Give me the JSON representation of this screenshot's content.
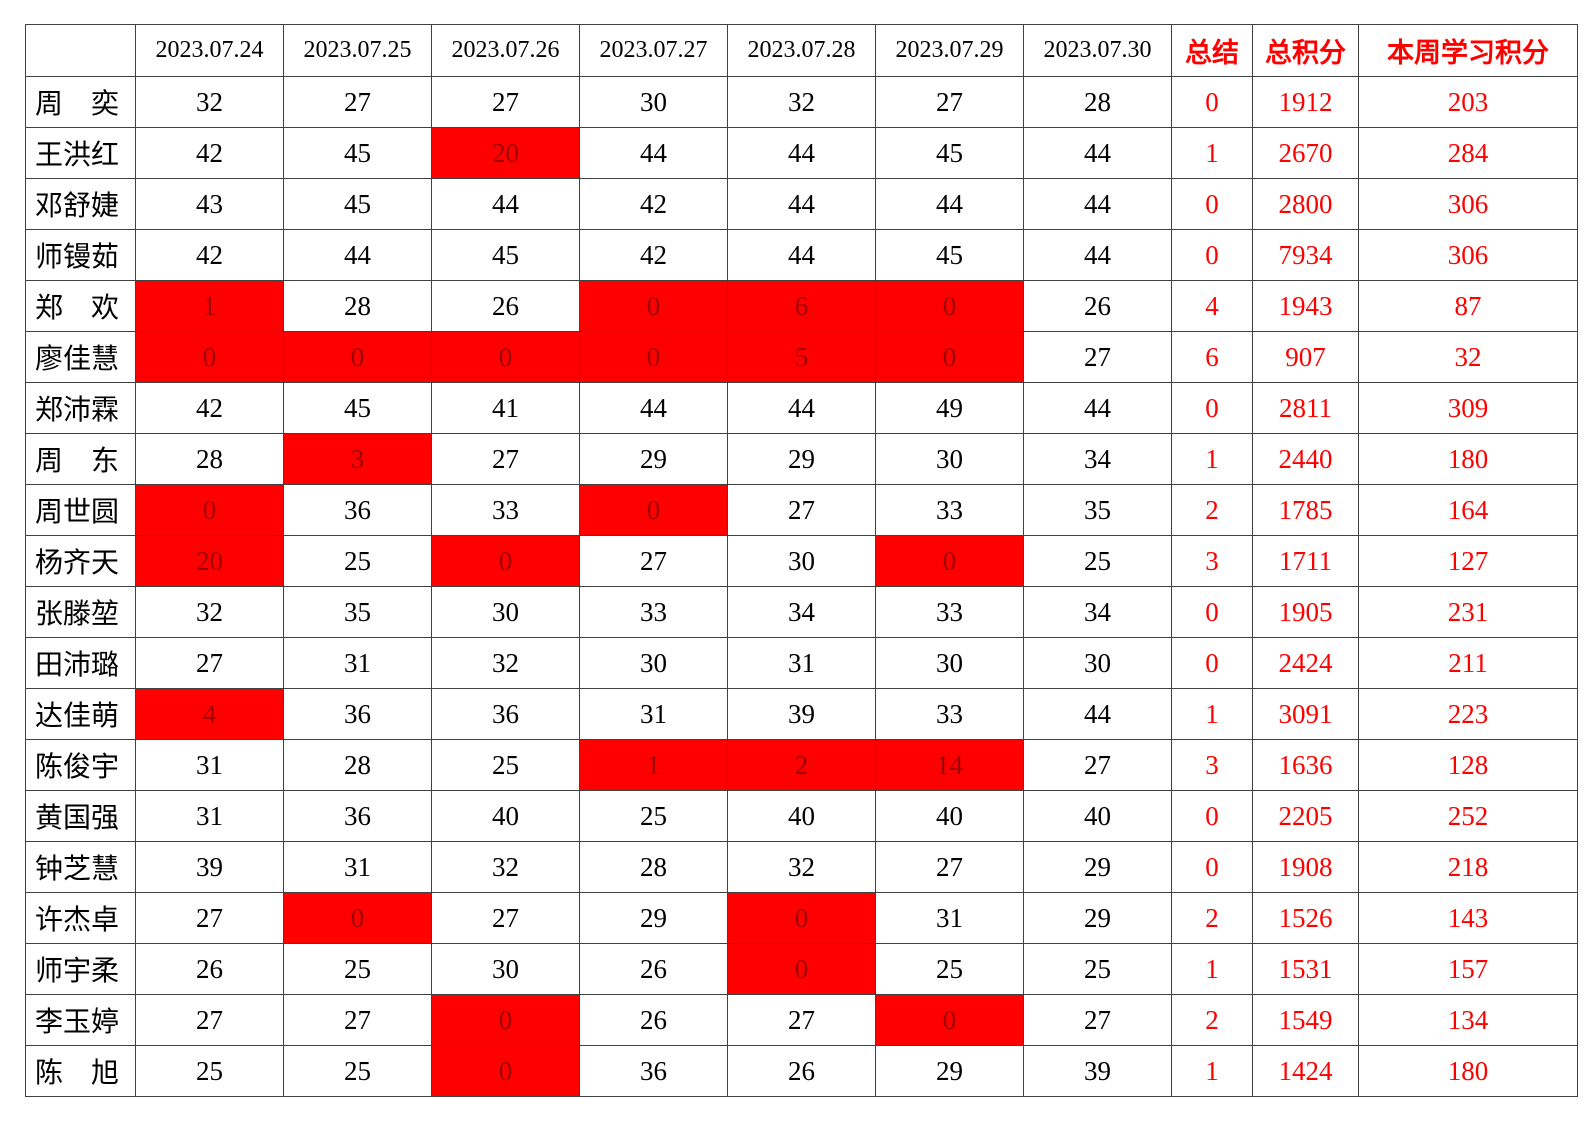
{
  "colors": {
    "highlight_bg": "#ff0000",
    "highlight_text": "#9e0000",
    "accent_text": "#ff0000",
    "grid_line": "#404040"
  },
  "table": {
    "date_headers": [
      "2023.07.24",
      "2023.07.25",
      "2023.07.26",
      "2023.07.27",
      "2023.07.28",
      "2023.07.29",
      "2023.07.30"
    ],
    "summary_label": "总结",
    "total_label": "总积分",
    "week_label": "本周学习积分",
    "rows": [
      {
        "name": "周　奕",
        "scores": [
          32,
          27,
          27,
          30,
          32,
          27,
          28
        ],
        "highlighted": [],
        "summary": 0,
        "total": 1912,
        "week_points": 203
      },
      {
        "name": "王洪红",
        "scores": [
          42,
          45,
          20,
          44,
          44,
          45,
          44
        ],
        "highlighted": [
          2
        ],
        "summary": 1,
        "total": 2670,
        "week_points": 284
      },
      {
        "name": "邓舒婕",
        "scores": [
          43,
          45,
          44,
          42,
          44,
          44,
          44
        ],
        "highlighted": [],
        "summary": 0,
        "total": 2800,
        "week_points": 306
      },
      {
        "name": "师镘茹",
        "scores": [
          42,
          44,
          45,
          42,
          44,
          45,
          44
        ],
        "highlighted": [],
        "summary": 0,
        "total": 7934,
        "week_points": 306
      },
      {
        "name": "郑　欢",
        "scores": [
          1,
          28,
          26,
          0,
          6,
          0,
          26
        ],
        "highlighted": [
          0,
          3,
          4,
          5
        ],
        "summary": 4,
        "total": 1943,
        "week_points": 87
      },
      {
        "name": "廖佳慧",
        "scores": [
          0,
          0,
          0,
          0,
          5,
          0,
          27
        ],
        "highlighted": [
          0,
          1,
          2,
          3,
          4,
          5
        ],
        "summary": 6,
        "total": 907,
        "week_points": 32
      },
      {
        "name": "郑沛霖",
        "scores": [
          42,
          45,
          41,
          44,
          44,
          49,
          44
        ],
        "highlighted": [],
        "summary": 0,
        "total": 2811,
        "week_points": 309
      },
      {
        "name": "周　东",
        "scores": [
          28,
          3,
          27,
          29,
          29,
          30,
          34
        ],
        "highlighted": [
          1
        ],
        "summary": 1,
        "total": 2440,
        "week_points": 180
      },
      {
        "name": "周世圆",
        "scores": [
          0,
          36,
          33,
          0,
          27,
          33,
          35
        ],
        "highlighted": [
          0,
          3
        ],
        "summary": 2,
        "total": 1785,
        "week_points": 164
      },
      {
        "name": "杨齐天",
        "scores": [
          20,
          25,
          0,
          27,
          30,
          0,
          25
        ],
        "highlighted": [
          0,
          2,
          5
        ],
        "summary": 3,
        "total": 1711,
        "week_points": 127
      },
      {
        "name": "张滕堃",
        "scores": [
          32,
          35,
          30,
          33,
          34,
          33,
          34
        ],
        "highlighted": [],
        "summary": 0,
        "total": 1905,
        "week_points": 231
      },
      {
        "name": "田沛璐",
        "scores": [
          27,
          31,
          32,
          30,
          31,
          30,
          30
        ],
        "highlighted": [],
        "summary": 0,
        "total": 2424,
        "week_points": 211
      },
      {
        "name": "达佳萌",
        "scores": [
          4,
          36,
          36,
          31,
          39,
          33,
          44
        ],
        "highlighted": [
          0
        ],
        "summary": 1,
        "total": 3091,
        "week_points": 223
      },
      {
        "name": "陈俊宇",
        "scores": [
          31,
          28,
          25,
          1,
          2,
          14,
          27
        ],
        "highlighted": [
          3,
          4,
          5
        ],
        "summary": 3,
        "total": 1636,
        "week_points": 128
      },
      {
        "name": "黄国强",
        "scores": [
          31,
          36,
          40,
          25,
          40,
          40,
          40
        ],
        "highlighted": [],
        "summary": 0,
        "total": 2205,
        "week_points": 252
      },
      {
        "name": "钟芝慧",
        "scores": [
          39,
          31,
          32,
          28,
          32,
          27,
          29
        ],
        "highlighted": [],
        "summary": 0,
        "total": 1908,
        "week_points": 218
      },
      {
        "name": "许杰卓",
        "scores": [
          27,
          0,
          27,
          29,
          0,
          31,
          29
        ],
        "highlighted": [
          1,
          4
        ],
        "summary": 2,
        "total": 1526,
        "week_points": 143
      },
      {
        "name": "师宇柔",
        "scores": [
          26,
          25,
          30,
          26,
          0,
          25,
          25
        ],
        "highlighted": [
          4
        ],
        "summary": 1,
        "total": 1531,
        "week_points": 157
      },
      {
        "name": "李玉婷",
        "scores": [
          27,
          27,
          0,
          26,
          27,
          0,
          27
        ],
        "highlighted": [
          2,
          5
        ],
        "summary": 2,
        "total": 1549,
        "week_points": 134
      },
      {
        "name": "陈　旭",
        "scores": [
          25,
          25,
          0,
          36,
          26,
          29,
          39
        ],
        "highlighted": [
          2
        ],
        "summary": 1,
        "total": 1424,
        "week_points": 180
      }
    ]
  }
}
